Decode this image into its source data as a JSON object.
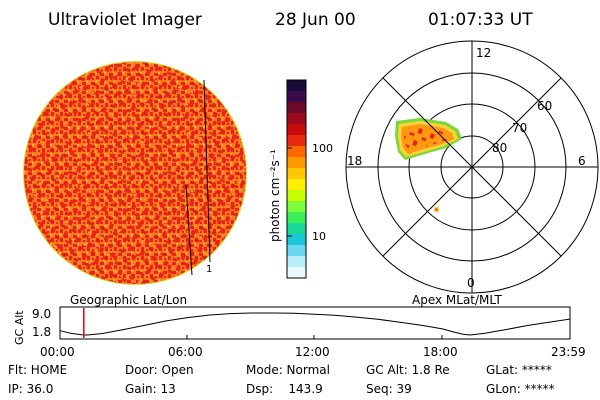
{
  "header": {
    "instrument": "Ultraviolet Imager",
    "date": "28 Jun 00",
    "time": "01:07:33 UT"
  },
  "left_panel": {
    "label": "Geographic Lat/Lon",
    "disk_colors": {
      "base": "#ff7a1a",
      "speckle": "#e8231c",
      "halo": "#ffcc33",
      "limb": "#c8e83c"
    },
    "marker_label": "1"
  },
  "colorbar": {
    "unit_label": "photon cm⁻²s⁻¹",
    "ticks": [
      "100",
      "10"
    ],
    "colors": [
      "#1a0a3a",
      "#3a0a4a",
      "#6a0a2a",
      "#9a0a1a",
      "#c80a0a",
      "#e82a10",
      "#ff6a00",
      "#ff9a00",
      "#ffc800",
      "#ffee00",
      "#c8ff00",
      "#7aff3a",
      "#3aee5a",
      "#1ad89a",
      "#1ac8d8",
      "#6ad8f0",
      "#b8eef8",
      "#e8f8fc"
    ]
  },
  "polar_panel": {
    "label": "Apex MLat/MLT",
    "mlt_labels": {
      "top": "12",
      "left": "18",
      "right": "6",
      "bottom": "0"
    },
    "lat_labels": [
      "60",
      "70",
      "80"
    ],
    "aurora_colors": {
      "core": "#e8231c",
      "mid": "#ff9a10",
      "edge": "#ffd23a",
      "rim": "#7ad83a"
    }
  },
  "altitude_plot": {
    "ylabel": "GC Alt",
    "yticks": [
      "9.0",
      "1.8"
    ],
    "xticks": [
      "00:00",
      "06:00",
      "12:00",
      "18:00",
      "23:59"
    ],
    "current_time_color": "#e8000a",
    "curve": {
      "hours": [
        0.0,
        0.5,
        1.0,
        1.3,
        2.0,
        3.0,
        4.0,
        5.0,
        6.0,
        7.0,
        8.0,
        9.0,
        10.0,
        11.0,
        12.0,
        13.0,
        14.0,
        15.0,
        16.0,
        17.0,
        18.0,
        18.5,
        19.0,
        19.3,
        20.0,
        21.0,
        22.0,
        23.0,
        23.98
      ],
      "alt": [
        3.2,
        2.4,
        1.9,
        1.8,
        2.3,
        3.6,
        5.0,
        6.4,
        7.5,
        8.3,
        8.8,
        9.0,
        9.0,
        8.9,
        8.6,
        8.2,
        7.6,
        6.9,
        6.0,
        5.0,
        3.8,
        2.8,
        2.0,
        1.8,
        2.4,
        3.6,
        4.9,
        6.0,
        7.0
      ]
    },
    "current_hour": 1.12
  },
  "status": {
    "flt": "Flt: HOME",
    "ip": "IP: 36.0",
    "door": "Door: Open",
    "gain": "Gain: 13",
    "mode": "Mode: Normal",
    "dsp": "Dsp:    143.9",
    "gcalt": "GC Alt: 1.8 Re",
    "seq": "Seq: 39",
    "glat": "GLat: *****",
    "glon": "GLon: *****"
  }
}
